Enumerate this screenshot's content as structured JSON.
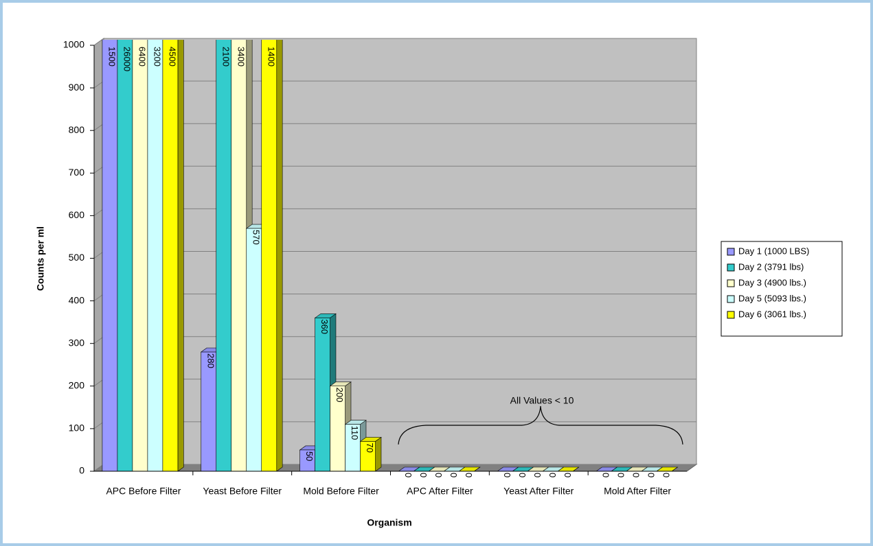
{
  "chart_data": {
    "type": "bar3d",
    "categories": [
      "APC Before Filter",
      "Yeast Before Filter",
      "Mold Before Filter",
      "APC After Filter",
      "Yeast After Filter",
      "Mold After Filter"
    ],
    "series": [
      {
        "name": "Day 1 (1000 LBS)",
        "color": "#9999ff",
        "values": [
          1500,
          280,
          50,
          0,
          0,
          0
        ]
      },
      {
        "name": "Day 2 (3791 lbs)",
        "color": "#33cccc",
        "values": [
          26000,
          2100,
          360,
          0,
          0,
          0
        ]
      },
      {
        "name": "Day 3 (4900 lbs.)",
        "color": "#ffffcc",
        "values": [
          6400,
          3400,
          200,
          0,
          0,
          0
        ]
      },
      {
        "name": "Day 5 (5093 lbs.)",
        "color": "#ccffff",
        "values": [
          3200,
          570,
          110,
          0,
          0,
          0
        ]
      },
      {
        "name": "Day 6 (3061 lbs.)",
        "color": "#ffff00",
        "values": [
          4500,
          1400,
          70,
          0,
          0,
          0
        ]
      }
    ],
    "ylim": [
      0,
      1000
    ],
    "yticks": [
      0,
      100,
      200,
      300,
      400,
      500,
      600,
      700,
      800,
      900,
      1000
    ],
    "grid": true,
    "legend": "right",
    "xlabel": "Organism",
    "ylabel": "Counts per ml",
    "annotation": "All Values < 10"
  }
}
